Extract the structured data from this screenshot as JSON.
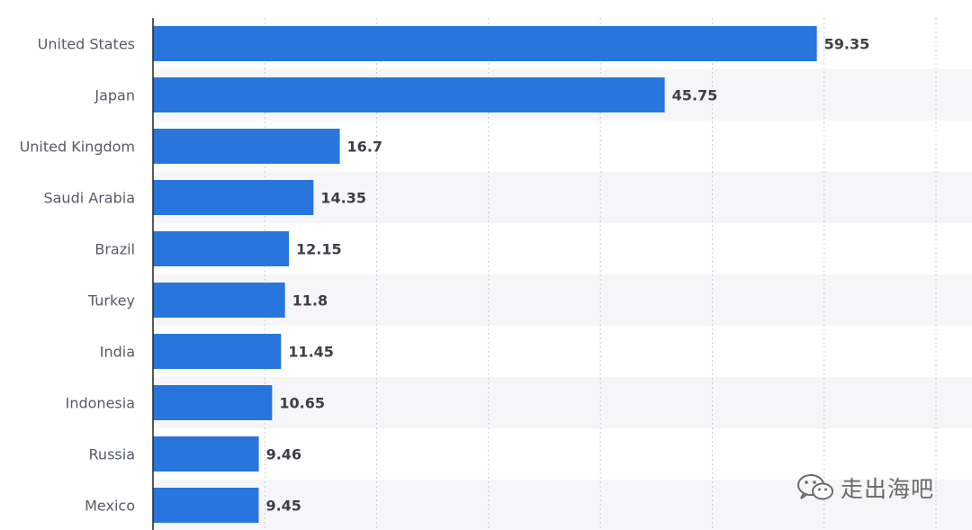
{
  "chart_data": {
    "type": "bar",
    "orientation": "horizontal",
    "categories": [
      "United States",
      "Japan",
      "United Kingdom",
      "Saudi Arabia",
      "Brazil",
      "Turkey",
      "India",
      "Indonesia",
      "Russia",
      "Mexico"
    ],
    "values": [
      59.35,
      45.75,
      16.7,
      14.35,
      12.15,
      11.8,
      11.45,
      10.65,
      9.46,
      9.45
    ],
    "value_labels": [
      "59.35",
      "45.75",
      "16.7",
      "14.35",
      "12.15",
      "11.8",
      "11.45",
      "10.65",
      "9.46",
      "9.45"
    ],
    "title": "",
    "xlabel": "",
    "ylabel": "",
    "xlim": [
      0,
      70
    ],
    "grid": true,
    "grid_style": "dotted vertical",
    "bar_color": "#2876dd",
    "stripe_color": "#f6f6f8",
    "legend": "none"
  },
  "watermark": {
    "text": "走出海吧",
    "icon": "wechat-icon"
  }
}
